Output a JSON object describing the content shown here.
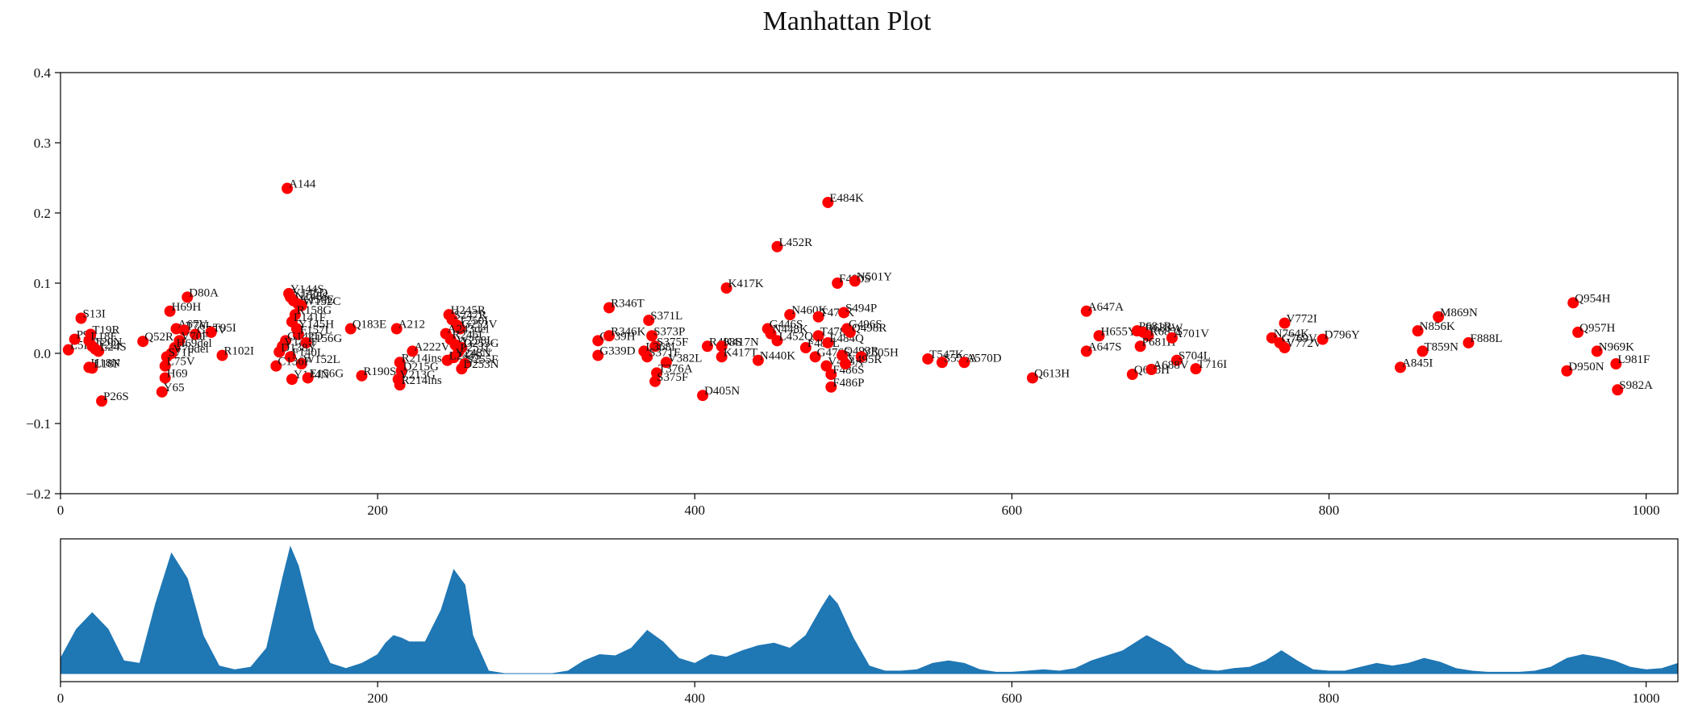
{
  "title": "Manhattan Plot",
  "colors": {
    "point": "#ff0000",
    "density": "#1f77b4",
    "axis": "#000000"
  },
  "chart_data": [
    {
      "type": "scatter",
      "title": "Manhattan Plot",
      "xlabel": "",
      "ylabel": "",
      "xlim": [
        0,
        1020
      ],
      "ylim": [
        -0.2,
        0.4
      ],
      "xticks": [
        0,
        200,
        400,
        600,
        800,
        1000
      ],
      "yticks": [
        -0.2,
        -0.1,
        0.0,
        0.1,
        0.2,
        0.3,
        0.4
      ],
      "grid": false,
      "points": [
        {
          "x": 13,
          "y": 0.05,
          "label": "S13I"
        },
        {
          "x": 5,
          "y": 0.005,
          "label": "L5F"
        },
        {
          "x": 9,
          "y": 0.02,
          "label": "P9L"
        },
        {
          "x": 19,
          "y": 0.027,
          "label": "T19R"
        },
        {
          "x": 18,
          "y": 0.018,
          "label": "L18F"
        },
        {
          "x": 20,
          "y": 0.01,
          "label": "T20N"
        },
        {
          "x": 22,
          "y": 0.006,
          "label": "T22I"
        },
        {
          "x": 24,
          "y": 0.003,
          "label": "L24S"
        },
        {
          "x": 18,
          "y": -0.02,
          "label": "H18N"
        },
        {
          "x": 20,
          "y": -0.021,
          "label": "L18F"
        },
        {
          "x": 26,
          "y": -0.068,
          "label": "P26S"
        },
        {
          "x": 52,
          "y": 0.017,
          "label": "Q52R"
        },
        {
          "x": 69,
          "y": 0.06,
          "label": "H69H"
        },
        {
          "x": 80,
          "y": 0.08,
          "label": "D80A"
        },
        {
          "x": 73,
          "y": 0.035,
          "label": "A67V"
        },
        {
          "x": 78,
          "y": 0.033,
          "label": "T76I"
        },
        {
          "x": 85,
          "y": 0.027,
          "label": "G75V"
        },
        {
          "x": 95,
          "y": 0.03,
          "label": "T95I"
        },
        {
          "x": 75,
          "y": 0.018,
          "label": "V70F"
        },
        {
          "x": 72,
          "y": 0.008,
          "label": "H69del"
        },
        {
          "x": 70,
          "y": 0.0,
          "label": "V70del"
        },
        {
          "x": 67,
          "y": -0.005,
          "label": "S71F"
        },
        {
          "x": 66,
          "y": -0.018,
          "label": "L75V"
        },
        {
          "x": 66,
          "y": -0.035,
          "label": "H69"
        },
        {
          "x": 64,
          "y": -0.055,
          "label": "Y65"
        },
        {
          "x": 102,
          "y": -0.003,
          "label": "R102I"
        },
        {
          "x": 143,
          "y": 0.235,
          "label": "A144"
        },
        {
          "x": 144,
          "y": 0.085,
          "label": "Y144S"
        },
        {
          "x": 145,
          "y": 0.08,
          "label": "Y145D"
        },
        {
          "x": 147,
          "y": 0.075,
          "label": "N148S"
        },
        {
          "x": 150,
          "y": 0.07,
          "label": "K150E"
        },
        {
          "x": 152,
          "y": 0.068,
          "label": "W152C"
        },
        {
          "x": 148,
          "y": 0.055,
          "label": "R158G"
        },
        {
          "x": 146,
          "y": 0.045,
          "label": "L141F"
        },
        {
          "x": 149,
          "y": 0.035,
          "label": "Y145H"
        },
        {
          "x": 150,
          "y": 0.027,
          "label": "F157L"
        },
        {
          "x": 142,
          "y": 0.018,
          "label": "G142D"
        },
        {
          "x": 140,
          "y": 0.01,
          "label": "V143F"
        },
        {
          "x": 155,
          "y": 0.015,
          "label": "E156G"
        },
        {
          "x": 138,
          "y": 0.002,
          "label": "D138Y"
        },
        {
          "x": 145,
          "y": -0.005,
          "label": "F140L"
        },
        {
          "x": 152,
          "y": -0.015,
          "label": "W152L"
        },
        {
          "x": 136,
          "y": -0.018,
          "label": "C136F"
        },
        {
          "x": 146,
          "y": -0.037,
          "label": "Y144N"
        },
        {
          "x": 156,
          "y": -0.035,
          "label": "E156G"
        },
        {
          "x": 183,
          "y": 0.035,
          "label": "Q183E"
        },
        {
          "x": 190,
          "y": -0.032,
          "label": "R190S"
        },
        {
          "x": 212,
          "y": 0.035,
          "label": "A212"
        },
        {
          "x": 214,
          "y": -0.013,
          "label": "R214ins"
        },
        {
          "x": 215,
          "y": -0.025,
          "label": "D215G"
        },
        {
          "x": 213,
          "y": -0.037,
          "label": "V213G"
        },
        {
          "x": 214,
          "y": -0.045,
          "label": "R214ins"
        },
        {
          "x": 222,
          "y": 0.003,
          "label": "A222V"
        },
        {
          "x": 245,
          "y": 0.055,
          "label": "H245R"
        },
        {
          "x": 247,
          "y": 0.048,
          "label": "S247R"
        },
        {
          "x": 250,
          "y": 0.04,
          "label": "T250I"
        },
        {
          "x": 252,
          "y": 0.035,
          "label": "G252V"
        },
        {
          "x": 243,
          "y": 0.028,
          "label": "A243del"
        },
        {
          "x": 246,
          "y": 0.02,
          "label": "R246I"
        },
        {
          "x": 249,
          "y": 0.012,
          "label": "W258L"
        },
        {
          "x": 253,
          "y": 0.008,
          "label": "D253G"
        },
        {
          "x": 251,
          "y": 0.002,
          "label": "P251L"
        },
        {
          "x": 248,
          "y": -0.006,
          "label": "Y248N"
        },
        {
          "x": 244,
          "y": -0.01,
          "label": "L244S"
        },
        {
          "x": 255,
          "y": -0.015,
          "label": "S255F"
        },
        {
          "x": 253,
          "y": -0.022,
          "label": "D253N"
        },
        {
          "x": 346,
          "y": 0.065,
          "label": "R346T"
        },
        {
          "x": 339,
          "y": 0.018,
          "label": "G339H"
        },
        {
          "x": 346,
          "y": 0.025,
          "label": "R346K"
        },
        {
          "x": 339,
          "y": -0.003,
          "label": "G339D"
        },
        {
          "x": 371,
          "y": 0.047,
          "label": "S371L"
        },
        {
          "x": 373,
          "y": 0.025,
          "label": "S373P"
        },
        {
          "x": 375,
          "y": 0.01,
          "label": "S375F"
        },
        {
          "x": 368,
          "y": 0.003,
          "label": "L368I"
        },
        {
          "x": 370,
          "y": -0.005,
          "label": "S371F"
        },
        {
          "x": 382,
          "y": -0.013,
          "label": "V382L"
        },
        {
          "x": 376,
          "y": -0.028,
          "label": "T376A"
        },
        {
          "x": 375,
          "y": -0.04,
          "label": "S375F"
        },
        {
          "x": 405,
          "y": -0.06,
          "label": "D405N"
        },
        {
          "x": 408,
          "y": 0.01,
          "label": "R408S"
        },
        {
          "x": 417,
          "y": 0.01,
          "label": "K417N"
        },
        {
          "x": 417,
          "y": -0.005,
          "label": "K417T"
        },
        {
          "x": 420,
          "y": 0.093,
          "label": "K417K"
        },
        {
          "x": 440,
          "y": -0.01,
          "label": "N440K"
        },
        {
          "x": 446,
          "y": 0.035,
          "label": "G446S"
        },
        {
          "x": 448,
          "y": 0.028,
          "label": "N448K"
        },
        {
          "x": 452,
          "y": 0.018,
          "label": "L452Q"
        },
        {
          "x": 452,
          "y": 0.152,
          "label": "L452R"
        },
        {
          "x": 460,
          "y": 0.055,
          "label": "N460K"
        },
        {
          "x": 478,
          "y": 0.052,
          "label": "T478K"
        },
        {
          "x": 478,
          "y": 0.025,
          "label": "T478R"
        },
        {
          "x": 470,
          "y": 0.008,
          "label": "F486L"
        },
        {
          "x": 484,
          "y": 0.015,
          "label": "E484Q"
        },
        {
          "x": 476,
          "y": -0.005,
          "label": "G476S"
        },
        {
          "x": 483,
          "y": -0.018,
          "label": "V483A"
        },
        {
          "x": 486,
          "y": -0.03,
          "label": "F486S"
        },
        {
          "x": 486,
          "y": -0.048,
          "label": "F486P"
        },
        {
          "x": 484,
          "y": 0.215,
          "label": "E484K"
        },
        {
          "x": 490,
          "y": 0.1,
          "label": "F490S"
        },
        {
          "x": 501,
          "y": 0.103,
          "label": "N501Y"
        },
        {
          "x": 494,
          "y": 0.058,
          "label": "S494P"
        },
        {
          "x": 496,
          "y": 0.035,
          "label": "G496S"
        },
        {
          "x": 498,
          "y": 0.03,
          "label": "Q498R"
        },
        {
          "x": 493,
          "y": -0.003,
          "label": "Q493R"
        },
        {
          "x": 505,
          "y": -0.005,
          "label": "Y505H"
        },
        {
          "x": 495,
          "y": -0.015,
          "label": "Y495R"
        },
        {
          "x": 547,
          "y": -0.008,
          "label": "T547K"
        },
        {
          "x": 556,
          "y": -0.013,
          "label": "S556A"
        },
        {
          "x": 570,
          "y": -0.013,
          "label": "A570D"
        },
        {
          "x": 613,
          "y": -0.035,
          "label": "Q613H"
        },
        {
          "x": 647,
          "y": 0.06,
          "label": "A647A"
        },
        {
          "x": 655,
          "y": 0.025,
          "label": "H655Y"
        },
        {
          "x": 647,
          "y": 0.003,
          "label": "A647S"
        },
        {
          "x": 679,
          "y": 0.032,
          "label": "P681R"
        },
        {
          "x": 683,
          "y": 0.03,
          "label": "R683W"
        },
        {
          "x": 686,
          "y": 0.025,
          "label": "R685S"
        },
        {
          "x": 681,
          "y": 0.01,
          "label": "P681H"
        },
        {
          "x": 701,
          "y": 0.022,
          "label": "A701V"
        },
        {
          "x": 704,
          "y": -0.01,
          "label": "S704L"
        },
        {
          "x": 676,
          "y": -0.03,
          "label": "Q675H"
        },
        {
          "x": 688,
          "y": -0.023,
          "label": "A688V"
        },
        {
          "x": 716,
          "y": -0.022,
          "label": "T716I"
        },
        {
          "x": 764,
          "y": 0.022,
          "label": "N764K"
        },
        {
          "x": 769,
          "y": 0.015,
          "label": "G769V"
        },
        {
          "x": 772,
          "y": 0.008,
          "label": "V772V"
        },
        {
          "x": 772,
          "y": 0.043,
          "label": "V772I"
        },
        {
          "x": 796,
          "y": 0.02,
          "label": "D796Y"
        },
        {
          "x": 845,
          "y": -0.02,
          "label": "A845I"
        },
        {
          "x": 856,
          "y": 0.032,
          "label": "N856K"
        },
        {
          "x": 859,
          "y": 0.003,
          "label": "T859N"
        },
        {
          "x": 869,
          "y": 0.052,
          "label": "M869N"
        },
        {
          "x": 888,
          "y": 0.015,
          "label": "F888L"
        },
        {
          "x": 950,
          "y": -0.025,
          "label": "D950N"
        },
        {
          "x": 954,
          "y": 0.072,
          "label": "Q954H"
        },
        {
          "x": 957,
          "y": 0.03,
          "label": "Q957H"
        },
        {
          "x": 969,
          "y": 0.003,
          "label": "N969K"
        },
        {
          "x": 981,
          "y": -0.015,
          "label": "L981F"
        },
        {
          "x": 982,
          "y": -0.052,
          "label": "S982A"
        }
      ]
    },
    {
      "type": "area",
      "xlim": [
        0,
        1020
      ],
      "xticks": [
        0,
        200,
        400,
        600,
        800,
        1000
      ],
      "grid": false,
      "x": [
        0,
        10,
        20,
        30,
        40,
        50,
        60,
        70,
        80,
        90,
        100,
        110,
        120,
        130,
        140,
        145,
        150,
        160,
        170,
        180,
        190,
        200,
        205,
        210,
        215,
        220,
        230,
        240,
        248,
        255,
        260,
        270,
        280,
        290,
        300,
        310,
        320,
        330,
        340,
        350,
        360,
        370,
        380,
        390,
        400,
        410,
        420,
        430,
        440,
        450,
        460,
        470,
        480,
        485,
        490,
        500,
        510,
        520,
        530,
        540,
        550,
        560,
        570,
        580,
        590,
        600,
        610,
        620,
        630,
        640,
        650,
        660,
        670,
        685,
        700,
        710,
        720,
        730,
        740,
        750,
        760,
        770,
        780,
        790,
        800,
        810,
        820,
        830,
        840,
        850,
        860,
        870,
        880,
        890,
        900,
        910,
        920,
        930,
        940,
        950,
        960,
        970,
        980,
        990,
        1000,
        1010,
        1020
      ],
      "y": [
        0.12,
        0.35,
        0.48,
        0.35,
        0.1,
        0.08,
        0.55,
        0.95,
        0.75,
        0.3,
        0.06,
        0.03,
        0.05,
        0.2,
        0.75,
        1.0,
        0.85,
        0.35,
        0.08,
        0.04,
        0.08,
        0.15,
        0.24,
        0.3,
        0.28,
        0.25,
        0.25,
        0.5,
        0.82,
        0.7,
        0.3,
        0.02,
        0.0,
        0.0,
        0.0,
        0.0,
        0.02,
        0.1,
        0.15,
        0.14,
        0.2,
        0.34,
        0.25,
        0.12,
        0.08,
        0.15,
        0.13,
        0.18,
        0.22,
        0.24,
        0.2,
        0.3,
        0.52,
        0.62,
        0.55,
        0.28,
        0.06,
        0.02,
        0.02,
        0.03,
        0.08,
        0.1,
        0.08,
        0.03,
        0.01,
        0.01,
        0.02,
        0.03,
        0.02,
        0.04,
        0.1,
        0.14,
        0.18,
        0.3,
        0.2,
        0.08,
        0.03,
        0.02,
        0.04,
        0.05,
        0.1,
        0.18,
        0.1,
        0.03,
        0.02,
        0.02,
        0.05,
        0.08,
        0.06,
        0.08,
        0.12,
        0.09,
        0.04,
        0.02,
        0.01,
        0.01,
        0.01,
        0.02,
        0.05,
        0.12,
        0.15,
        0.13,
        0.1,
        0.05,
        0.03,
        0.04,
        0.08
      ]
    }
  ]
}
